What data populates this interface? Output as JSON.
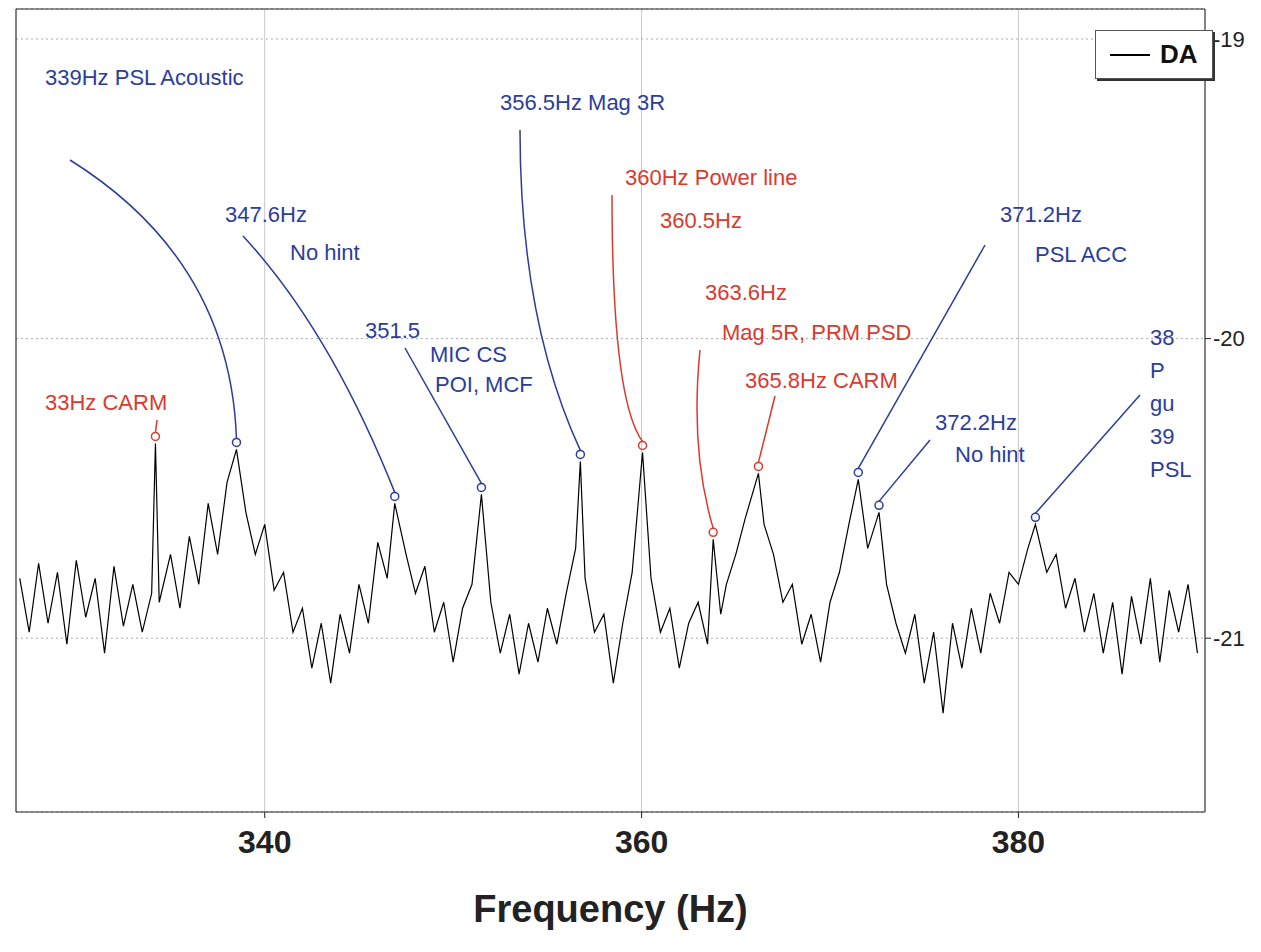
{
  "chart_data": {
    "type": "line",
    "x_label": "Frequency (Hz)",
    "xlim": [
      326.8,
      389.9
    ],
    "xticks": [
      340,
      360,
      380
    ],
    "ylim": [
      -21.58,
      -18.9
    ],
    "yticks": [
      -21,
      -20,
      -19
    ],
    "grid": true,
    "legend": "upper right",
    "x": [
      327,
      327.5,
      328,
      328.5,
      329,
      329.5,
      330,
      330.5,
      331,
      331.5,
      332,
      332.5,
      333,
      333.5,
      334,
      334.2,
      334.4,
      335,
      335.5,
      336,
      336.5,
      337,
      337.5,
      338,
      338.5,
      339,
      339.5,
      340,
      340.5,
      341,
      341.5,
      342,
      342.5,
      343,
      343.5,
      344,
      344.5,
      345,
      345.5,
      346,
      346.5,
      346.9,
      347.5,
      348,
      348.5,
      349,
      349.5,
      350,
      350.5,
      351,
      351.5,
      352,
      352.5,
      353,
      353.5,
      354,
      354.5,
      355,
      355.5,
      356,
      356.5,
      356.75,
      357,
      357.5,
      358,
      358.5,
      359,
      359.5,
      360.05,
      360.5,
      361,
      361.5,
      362,
      362.5,
      363,
      363.5,
      363.8,
      364.2,
      364.5,
      365,
      365.5,
      366.2,
      366.5,
      367,
      367.5,
      368,
      368.5,
      369,
      369.5,
      370,
      370.5,
      371,
      371.5,
      372,
      372.6,
      373,
      373.5,
      374,
      374.5,
      375,
      375.5,
      376,
      376.5,
      377,
      377.5,
      378,
      378.5,
      379,
      379.5,
      380,
      380.5,
      380.9,
      381.5,
      382,
      382.5,
      383,
      383.5,
      384,
      384.5,
      385,
      385.5,
      386,
      386.5,
      387,
      387.5,
      388,
      388.5,
      389,
      389.5
    ],
    "series": [
      {
        "name": "DA",
        "color": "#000000",
        "values": [
          -20.8,
          -20.98,
          -20.75,
          -20.95,
          -20.78,
          -21.02,
          -20.74,
          -20.93,
          -20.8,
          -21.05,
          -20.76,
          -20.96,
          -20.82,
          -20.98,
          -20.85,
          -20.35,
          -20.88,
          -20.72,
          -20.9,
          -20.66,
          -20.82,
          -20.55,
          -20.72,
          -20.48,
          -20.37,
          -20.58,
          -20.72,
          -20.62,
          -20.84,
          -20.78,
          -20.98,
          -20.9,
          -21.1,
          -20.95,
          -21.15,
          -20.92,
          -21.05,
          -20.82,
          -20.95,
          -20.68,
          -20.8,
          -20.55,
          -20.72,
          -20.85,
          -20.76,
          -20.98,
          -20.88,
          -21.08,
          -20.9,
          -20.82,
          -20.52,
          -20.88,
          -21.05,
          -20.92,
          -21.12,
          -20.95,
          -21.08,
          -20.9,
          -21.02,
          -20.85,
          -20.7,
          -20.41,
          -20.8,
          -20.98,
          -20.92,
          -21.15,
          -20.95,
          -20.78,
          -20.38,
          -20.8,
          -20.98,
          -20.9,
          -21.1,
          -20.95,
          -20.88,
          -21.02,
          -20.67,
          -20.92,
          -20.82,
          -20.72,
          -20.6,
          -20.45,
          -20.62,
          -20.72,
          -20.88,
          -20.82,
          -21.02,
          -20.92,
          -21.08,
          -20.88,
          -20.78,
          -20.62,
          -20.47,
          -20.7,
          -20.58,
          -20.82,
          -20.95,
          -21.05,
          -20.92,
          -21.15,
          -20.98,
          -21.25,
          -20.95,
          -21.1,
          -20.9,
          -21.05,
          -20.85,
          -20.95,
          -20.78,
          -20.82,
          -20.7,
          -20.62,
          -20.78,
          -20.72,
          -20.9,
          -20.8,
          -20.98,
          -20.85,
          -21.05,
          -20.88,
          -21.12,
          -20.86,
          -21.02,
          -20.8,
          -21.08,
          -20.84,
          -20.98,
          -20.82,
          -21.05
        ]
      }
    ],
    "annotations": [
      {
        "text": [
          "33Hz CARM"
        ],
        "x": 334.2,
        "y": -20.35,
        "color": "#d93a2e"
      },
      {
        "text": [
          "339Hz PSL Acoustic"
        ],
        "x": 338.5,
        "y": -20.37,
        "color": "#2b3d9c"
      },
      {
        "text": [
          "347.6Hz",
          "No hint"
        ],
        "x": 346.9,
        "y": -20.55,
        "color": "#2b3d9c"
      },
      {
        "text": [
          "351.5",
          "MIC CS",
          "POI, MCF"
        ],
        "x": 351.5,
        "y": -20.52,
        "color": "#2b3d9c"
      },
      {
        "text": [
          "356.5Hz Mag 3R"
        ],
        "x": 356.75,
        "y": -20.41,
        "color": "#2b3d9c"
      },
      {
        "text": [
          "360Hz Power line",
          "360.5Hz"
        ],
        "x": 360.05,
        "y": -20.38,
        "color": "#d93a2e"
      },
      {
        "text": [
          "363.6Hz",
          "Mag 5R, PRM PSD"
        ],
        "x": 363.8,
        "y": -20.67,
        "color": "#d93a2e"
      },
      {
        "text": [
          "365.8Hz CARM"
        ],
        "x": 366.2,
        "y": -20.45,
        "color": "#d93a2e"
      },
      {
        "text": [
          "371.2Hz",
          "PSL ACC"
        ],
        "x": 371.5,
        "y": -20.47,
        "color": "#2b3d9c"
      },
      {
        "text": [
          "372.2Hz",
          "No hint"
        ],
        "x": 372.6,
        "y": -20.58,
        "color": "#2b3d9c"
      },
      {
        "text": [
          "38",
          "P",
          "gu",
          "39",
          "PSL"
        ],
        "x": 380.9,
        "y": -20.62,
        "color": "#2b3d9c"
      }
    ]
  }
}
